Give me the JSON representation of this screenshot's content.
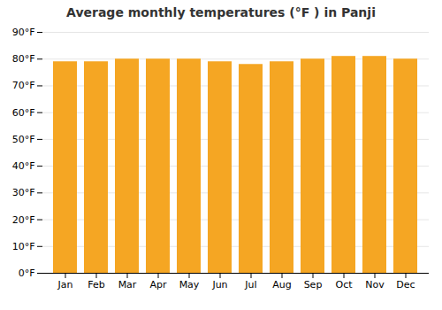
{
  "chart_data": {
    "type": "bar",
    "title": "Average monthly temperatures (°F ) in Panji",
    "categories": [
      "Jan",
      "Feb",
      "Mar",
      "Apr",
      "May",
      "Jun",
      "Jul",
      "Aug",
      "Sep",
      "Oct",
      "Nov",
      "Dec"
    ],
    "values": [
      79,
      79,
      80,
      80,
      80,
      79,
      78,
      79,
      80,
      81,
      81,
      80
    ],
    "color": "#F5A623",
    "ylim": [
      0,
      90
    ],
    "yticks": [
      {
        "value": 0,
        "label": "0°F"
      },
      {
        "value": 10,
        "label": "10°F"
      },
      {
        "value": 20,
        "label": "20°F"
      },
      {
        "value": 30,
        "label": "30°F"
      },
      {
        "value": 40,
        "label": "40°F"
      },
      {
        "value": 50,
        "label": "50°F"
      },
      {
        "value": 60,
        "label": "60°F"
      },
      {
        "value": 70,
        "label": "70°F"
      },
      {
        "value": 80,
        "label": "80°F"
      },
      {
        "value": 90,
        "label": "90°F"
      }
    ],
    "grid": true
  }
}
